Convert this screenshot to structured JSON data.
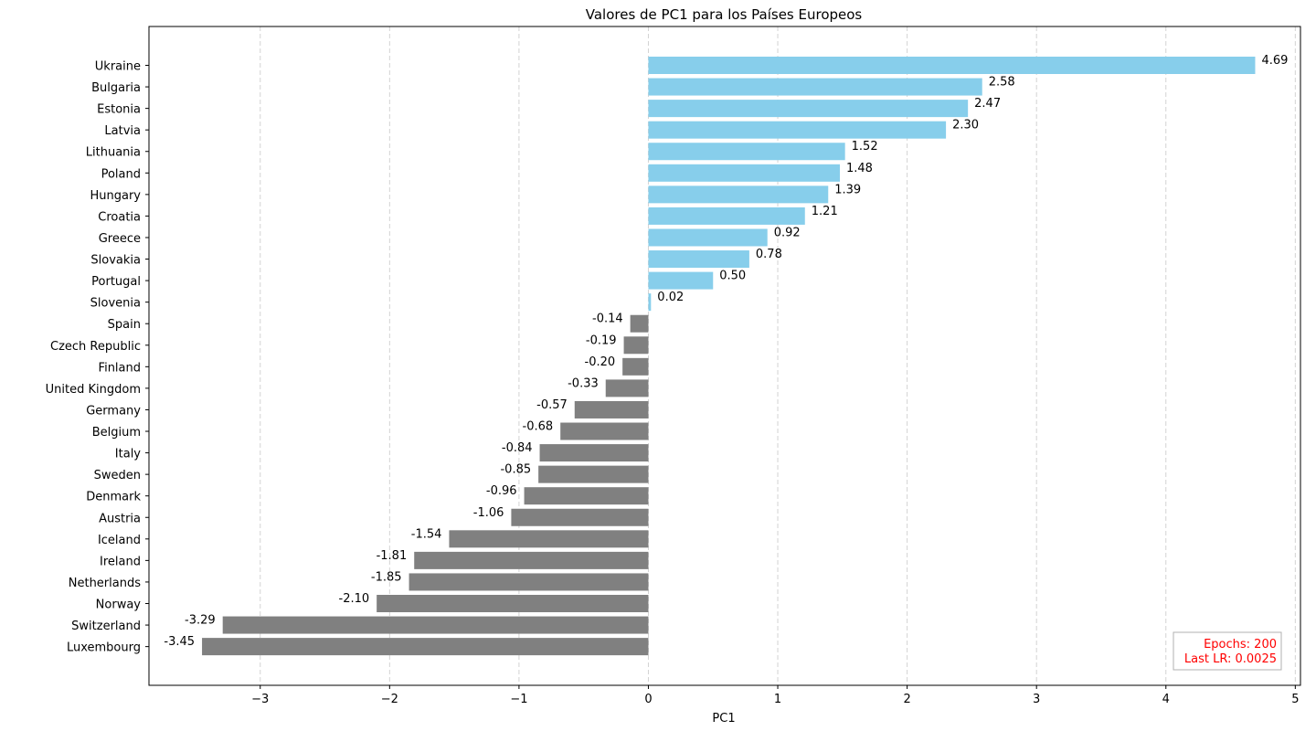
{
  "chart_data": {
    "type": "bar",
    "orientation": "horizontal",
    "title": "Valores de PC1 para los Países Europeos",
    "xlabel": "PC1",
    "ylabel": "",
    "xlim": [
      -3.86,
      5.04
    ],
    "x_ticks": [
      -3,
      -2,
      -1,
      0,
      1,
      2,
      3,
      4,
      5
    ],
    "x_tick_labels": [
      "−3",
      "−2",
      "−1",
      "0",
      "1",
      "2",
      "3",
      "4",
      "5"
    ],
    "grid": {
      "x": true,
      "y": false,
      "style": "dashed"
    },
    "colors": {
      "positive": "#87ceeb",
      "negative": "#808080",
      "annotation": "#ff0000"
    },
    "categories": [
      "Ukraine",
      "Bulgaria",
      "Estonia",
      "Latvia",
      "Lithuania",
      "Poland",
      "Hungary",
      "Croatia",
      "Greece",
      "Slovakia",
      "Portugal",
      "Slovenia",
      "Spain",
      "Czech Republic",
      "Finland",
      "United Kingdom",
      "Germany",
      "Belgium",
      "Italy",
      "Sweden",
      "Denmark",
      "Austria",
      "Iceland",
      "Ireland",
      "Netherlands",
      "Norway",
      "Switzerland",
      "Luxembourg"
    ],
    "values": [
      4.69,
      2.58,
      2.47,
      2.3,
      1.52,
      1.48,
      1.39,
      1.21,
      0.92,
      0.78,
      0.5,
      0.02,
      -0.14,
      -0.19,
      -0.2,
      -0.33,
      -0.57,
      -0.68,
      -0.84,
      -0.85,
      -0.96,
      -1.06,
      -1.54,
      -1.81,
      -1.85,
      -2.1,
      -3.29,
      -3.45
    ],
    "value_labels": [
      "4.69",
      "2.58",
      "2.47",
      "2.30",
      "1.52",
      "1.48",
      "1.39",
      "1.21",
      "0.92",
      "0.78",
      "0.50",
      "0.02",
      "-0.14",
      "-0.19",
      "-0.20",
      "-0.33",
      "-0.57",
      "-0.68",
      "-0.84",
      "-0.85",
      "-0.96",
      "-1.06",
      "-1.54",
      "-1.81",
      "-1.85",
      "-2.10",
      "-3.29",
      "-3.45"
    ],
    "annotation": {
      "lines": [
        "Epochs: 200",
        "Last LR: 0.0025"
      ],
      "placement": "bottom-right"
    }
  }
}
